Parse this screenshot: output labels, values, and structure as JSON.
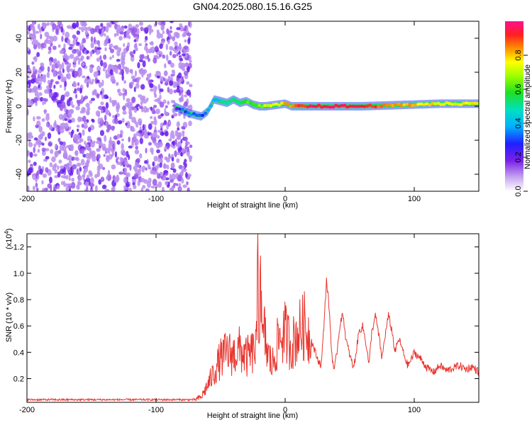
{
  "figure": {
    "title": "GN04.2025.080.15.16.G25",
    "colorbar": {
      "label": "Normalized spectral amplitude",
      "ticks": [
        0.0,
        0.2,
        0.4,
        0.6,
        0.8
      ],
      "tick_labels": [
        "0.0",
        "0.2",
        "0.4",
        "0.6",
        "0.8"
      ],
      "range": [
        0,
        1
      ]
    }
  },
  "chart_data": [
    {
      "type": "heatmap",
      "title": "",
      "xlabel": "Height of straight line (km)",
      "ylabel": "Frequency (Hz)",
      "xlim": [
        -200,
        150
      ],
      "ylim": [
        -50,
        50
      ],
      "xticks": [
        -200,
        -100,
        0,
        100
      ],
      "xtick_labels": [
        "-200",
        "-100",
        "0",
        "100"
      ],
      "yticks": [
        -40,
        -20,
        0,
        20,
        40
      ],
      "ytick_labels": [
        "-40",
        "-20",
        "0",
        "20",
        "40"
      ],
      "noise_region": {
        "x_range": [
          -200,
          -73
        ],
        "y_range": [
          -50,
          50
        ],
        "amplitude": 0.1
      },
      "ridge": {
        "x": [
          -86,
          -80,
          -75,
          -70,
          -65,
          -60,
          -55,
          -50,
          -45,
          -40,
          -35,
          -30,
          -25,
          -20,
          -15,
          -10,
          -5,
          0,
          5,
          10,
          20,
          40,
          60,
          80,
          100,
          120,
          150
        ],
        "y": [
          0,
          -2,
          -4,
          -5,
          -6,
          -3,
          4,
          3,
          2,
          4,
          2,
          3,
          1,
          0,
          0,
          0.5,
          1,
          1.5,
          0,
          0,
          0,
          0,
          0,
          0.5,
          1,
          1.5,
          1.5
        ],
        "amplitude": [
          0.15,
          0.3,
          0.35,
          0.35,
          0.3,
          0.35,
          0.4,
          0.45,
          0.5,
          0.5,
          0.55,
          0.6,
          0.6,
          0.65,
          0.7,
          0.75,
          0.75,
          0.8,
          0.85,
          0.9,
          0.95,
          0.95,
          0.95,
          0.85,
          0.8,
          0.75,
          0.75
        ]
      }
    },
    {
      "type": "line",
      "title": "",
      "xlabel": "Height of straight line (km)",
      "ylabel": "SNR (10 * v/v)",
      "scale_label": "(x10",
      "scale_exponent": "4",
      "scale_close": ")",
      "xlim": [
        -200,
        150
      ],
      "ylim": [
        0.02,
        1.3
      ],
      "xticks": [
        -200,
        -100,
        0,
        100
      ],
      "xtick_labels": [
        "-200",
        "-100",
        "0",
        "100"
      ],
      "yticks": [
        0.2,
        0.4,
        0.6,
        0.8,
        1.0,
        1.2
      ],
      "ytick_labels": [
        "0.2",
        "0.4",
        "0.6",
        "0.8",
        "1.0",
        "1.2"
      ],
      "series": [
        {
          "color": "#e8352e",
          "x": [
            -200,
            -70,
            -65,
            -60,
            -55,
            -50,
            -45,
            -40,
            -35,
            -30,
            -25,
            -22,
            -21,
            -20,
            -19,
            -18,
            -16,
            -14,
            -12,
            -10,
            -5,
            0,
            5,
            10,
            15,
            20,
            25,
            28,
            30,
            32,
            34,
            36,
            38,
            40,
            43,
            45,
            47,
            50,
            53,
            55,
            57,
            60,
            63,
            65,
            67,
            70,
            73,
            75,
            77,
            80,
            83,
            85,
            88,
            90,
            93,
            95,
            98,
            100,
            105,
            110,
            115,
            120,
            125,
            130,
            135,
            140,
            145,
            150
          ],
          "y": [
            0.04,
            0.04,
            0.06,
            0.15,
            0.25,
            0.35,
            0.4,
            0.38,
            0.42,
            0.36,
            0.4,
            0.45,
            1.15,
            0.5,
            1.3,
            0.45,
            0.55,
            0.4,
            0.35,
            0.3,
            0.5,
            0.55,
            0.45,
            0.55,
            0.6,
            0.5,
            0.35,
            0.3,
            0.6,
            0.95,
            0.75,
            0.4,
            0.25,
            0.4,
            0.65,
            0.68,
            0.5,
            0.38,
            0.28,
            0.4,
            0.55,
            0.6,
            0.45,
            0.3,
            0.55,
            0.68,
            0.5,
            0.35,
            0.5,
            0.68,
            0.55,
            0.4,
            0.5,
            0.45,
            0.35,
            0.3,
            0.35,
            0.4,
            0.35,
            0.28,
            0.25,
            0.3,
            0.26,
            0.28,
            0.3,
            0.27,
            0.29,
            0.25
          ]
        }
      ]
    }
  ]
}
